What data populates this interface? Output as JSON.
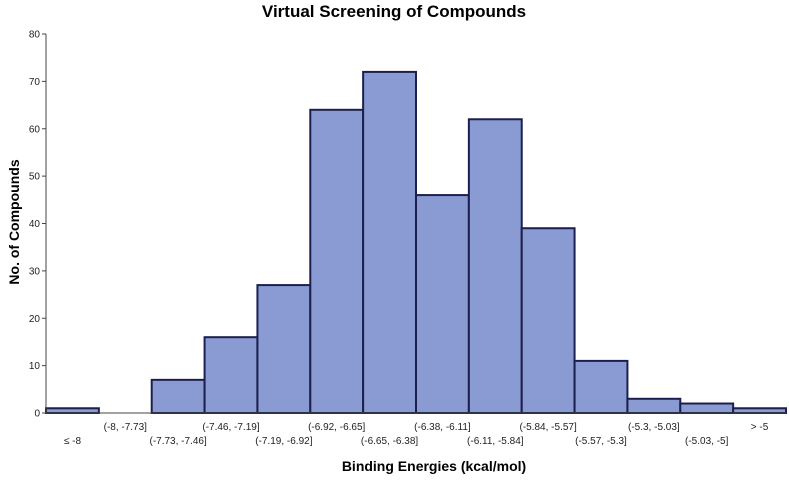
{
  "chart_data": {
    "type": "bar",
    "title": "Virtual Screening of Compounds",
    "xlabel": "Binding Energies (kcal/mol)",
    "ylabel": "No. of Compounds",
    "ylim": [
      0,
      80
    ],
    "yticks": [
      0,
      10,
      20,
      30,
      40,
      50,
      60,
      70,
      80
    ],
    "grid": false,
    "legend": "none",
    "bar_fill": "#8a9bd4",
    "bar_stroke": "#1c1f4d",
    "categories": [
      "≤ -8",
      "(-8, -7.73]",
      "(-7.73, -7.46]",
      "(-7.46, -7.19]",
      "(-7.19, -6.92]",
      "(-6.92, -6.65]",
      "(-6.65, -6.38]",
      "(-6.38, -6.11]",
      "(-6.11, -5.84]",
      "(-5.84, -5.57]",
      "(-5.57, -5.3]",
      "(-5.3, -5.03]",
      "(-5.03, -5]",
      "> -5"
    ],
    "values": [
      1,
      0,
      7,
      16,
      27,
      64,
      72,
      46,
      62,
      39,
      11,
      3,
      2,
      1
    ]
  }
}
